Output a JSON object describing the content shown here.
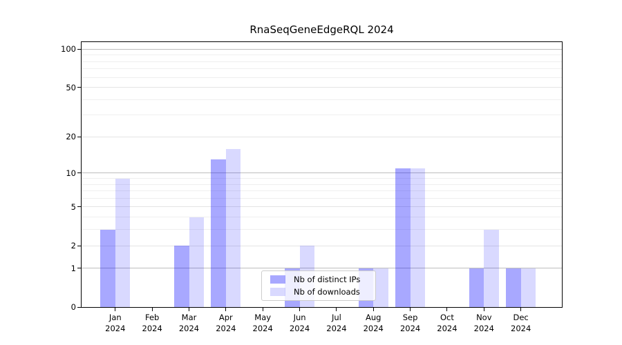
{
  "chart_data": {
    "type": "bar",
    "title": "RnaSeqGeneEdgeRQL 2024",
    "categories": [
      "Jan",
      "Feb",
      "Mar",
      "Apr",
      "May",
      "Jun",
      "Jul",
      "Aug",
      "Sep",
      "Oct",
      "Nov",
      "Dec"
    ],
    "category_year": "2024",
    "series": [
      {
        "name": "Nb of distinct IPs",
        "values": [
          3,
          0,
          2,
          13,
          0,
          1,
          0,
          1,
          11,
          0,
          1,
          1
        ],
        "color": "#0000ff",
        "alpha": 0.34
      },
      {
        "name": "Nb of downloads",
        "values": [
          9,
          0,
          4,
          16,
          0,
          2,
          0,
          1,
          11,
          0,
          3,
          1
        ],
        "color": "#0000ff",
        "alpha": 0.15
      }
    ],
    "y_axis": {
      "scale": "log10(1+y)",
      "tick_labels": [
        "0",
        "1",
        "2",
        "5",
        "10",
        "20",
        "50",
        "100"
      ],
      "tick_values": [
        0,
        1,
        2,
        5,
        10,
        20,
        50,
        100
      ],
      "major_gridlines": [
        1,
        10,
        100
      ],
      "mid_gridlines": [
        2,
        5,
        20,
        50
      ],
      "minor_gridlines": [
        3,
        4,
        6,
        7,
        8,
        9,
        30,
        40,
        60,
        70,
        80,
        90
      ],
      "ylim": [
        0,
        112
      ]
    },
    "legend_position": "lower center",
    "grid": true
  },
  "colors": {
    "bar_ips_rendered": "#a7a7f6",
    "bar_downloads_rendered": "#d8d8f8",
    "grid_major": "#bdbdbd",
    "grid_mid": "#e4e4e4",
    "grid_minor": "#efefef",
    "spine": "#000000",
    "background": "#ffffff",
    "legend_border": "#cccccc"
  }
}
